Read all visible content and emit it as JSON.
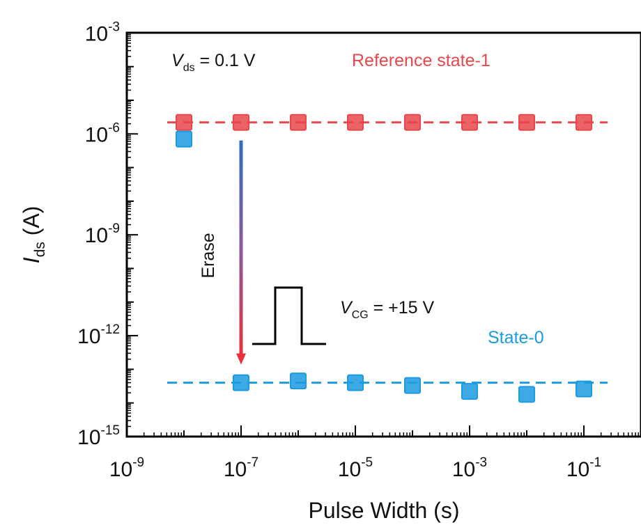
{
  "chart_data": {
    "type": "scatter",
    "xscale": "log",
    "yscale": "log",
    "xlabel": "Pulse Width (s)",
    "ylabel": {
      "main": "I",
      "sub": "ds",
      "unit": " (A)"
    },
    "xlim_exp": [
      -9,
      0
    ],
    "ylim_exp": [
      -15,
      -3
    ],
    "x_ticks": [
      {
        "base": "10",
        "exp": "-9"
      },
      {
        "base": "10",
        "exp": "-7"
      },
      {
        "base": "10",
        "exp": "-5"
      },
      {
        "base": "10",
        "exp": "-3"
      },
      {
        "base": "10",
        "exp": "-1"
      }
    ],
    "y_ticks": [
      {
        "base": "10",
        "exp": "-3"
      },
      {
        "base": "10",
        "exp": "-6"
      },
      {
        "base": "10",
        "exp": "-9"
      },
      {
        "base": "10",
        "exp": "-12"
      },
      {
        "base": "10",
        "exp": "-15"
      }
    ],
    "series": [
      {
        "name": "Reference state-1",
        "color": "#e8474c",
        "x": [
          1e-08,
          1e-07,
          1e-06,
          1e-05,
          0.0001,
          0.001,
          0.01,
          0.1
        ],
        "y": [
          2.2e-06,
          2.2e-06,
          2.2e-06,
          2.2e-06,
          2.2e-06,
          2.2e-06,
          2.2e-06,
          2.2e-06
        ],
        "reference_line": 2.2e-06
      },
      {
        "name": "State-0",
        "color": "#1c9be0",
        "x": [
          1e-08,
          1e-07,
          1e-06,
          1e-05,
          0.0001,
          0.001,
          0.01,
          0.1
        ],
        "y": [
          7e-07,
          4e-14,
          4.5e-14,
          4e-14,
          3.3e-14,
          2.2e-14,
          1.8e-14,
          2.6e-14
        ],
        "reference_line": 4e-14
      }
    ],
    "annotations": {
      "vds": {
        "main": "V",
        "sub": "ds",
        "rest": " = 0.1 V"
      },
      "reference_label": "Reference state-1",
      "state0_label": "State-0",
      "erase_label": "Erase",
      "vcg": {
        "main": "V",
        "sub": "CG",
        "rest": " = +15 V"
      }
    }
  }
}
